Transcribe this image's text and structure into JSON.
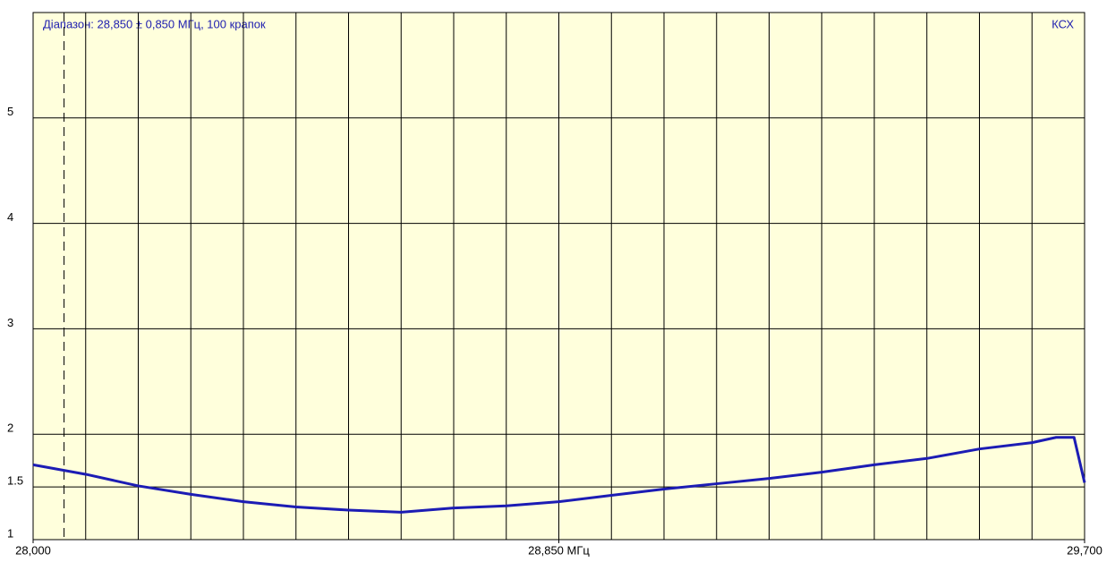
{
  "chart_data": {
    "type": "line",
    "title": "Діапазон: 28,850 ± 0,850 МГц, 100 крапок",
    "y_label": "КСХ",
    "x": [
      28.0,
      28.085,
      28.17,
      28.255,
      28.34,
      28.425,
      28.51,
      28.595,
      28.68,
      28.765,
      28.85,
      28.935,
      29.02,
      29.105,
      29.19,
      29.275,
      29.36,
      29.445,
      29.53,
      29.615,
      29.654,
      29.683,
      29.7
    ],
    "values": [
      1.71,
      1.62,
      1.51,
      1.43,
      1.36,
      1.31,
      1.28,
      1.26,
      1.3,
      1.32,
      1.36,
      1.42,
      1.48,
      1.53,
      1.58,
      1.64,
      1.71,
      1.77,
      1.86,
      1.92,
      1.97,
      1.97,
      1.54
    ],
    "color": "#1c1cb4",
    "xlim": [
      28.0,
      29.7
    ],
    "xticks": [
      {
        "value": 28.0,
        "label": "28,000"
      },
      {
        "value": 28.85,
        "label": "28,850 МГц"
      },
      {
        "value": 29.7,
        "label": "29,700"
      }
    ],
    "xgrid": [
      28.085,
      28.17,
      28.255,
      28.34,
      28.425,
      28.51,
      28.595,
      28.68,
      28.765,
      28.85,
      28.935,
      29.02,
      29.105,
      29.19,
      29.275,
      29.36,
      29.445,
      29.53,
      29.615
    ],
    "marker_x": 28.05,
    "ylim": [
      1,
      6
    ],
    "yticks": [
      1,
      1.5,
      2,
      3,
      4,
      5
    ],
    "grid": true
  }
}
